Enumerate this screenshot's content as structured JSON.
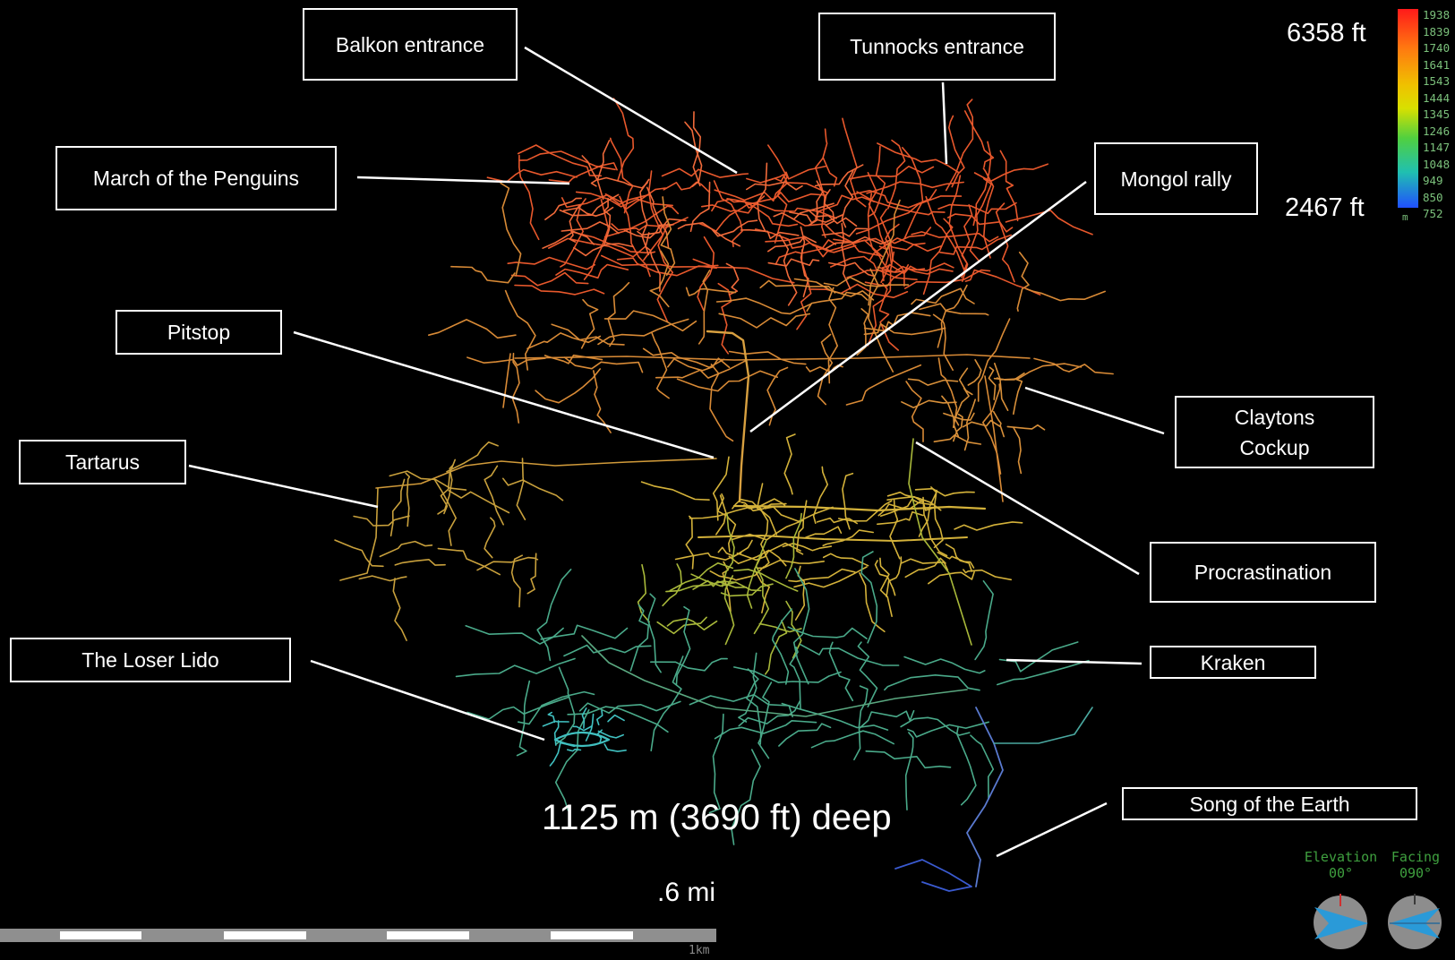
{
  "labels": {
    "balkon": "Balkon entrance",
    "tunnocks": "Tunnocks entrance",
    "march": "March of the Penguins",
    "mongol": "Mongol rally",
    "pitstop": "Pitstop",
    "claytons": "Claytons Cockup",
    "tartarus": "Tartarus",
    "procrastination": "Procrastination",
    "loser_lido": "The Loser Lido",
    "kraken": "Kraken",
    "song": "Song of the Earth"
  },
  "elevation": {
    "top": "6358 ft",
    "bottom": "2467 ft"
  },
  "legend": {
    "values": [
      "1938",
      "1839",
      "1740",
      "1641",
      "1543",
      "1444",
      "1345",
      "1246",
      "1147",
      "1048",
      "949",
      "850",
      "752"
    ],
    "unit": "m",
    "colors": [
      "#ff2020",
      "#ff6a10",
      "#ffb000",
      "#e8e000",
      "#70d030",
      "#20c8a0",
      "#2060ff"
    ]
  },
  "depth_text": "1125 m (3690 ft) deep",
  "scale": {
    "label": ".6 mi",
    "unit_label": "1km"
  },
  "compass": {
    "elevation_label": "Elevation",
    "elevation_value": "00°",
    "facing_label": "Facing",
    "facing_value": "090°"
  },
  "colors": {
    "high": "#e8582c",
    "upper_mid": "#d88a36",
    "mid": "#d4b23a",
    "lower_mid": "#a8b83a",
    "low": "#4aaa8a",
    "lowest": "#3a5ad0"
  }
}
